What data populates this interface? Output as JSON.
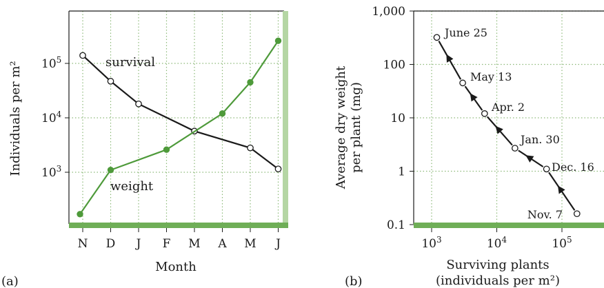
{
  "chart_data": [
    {
      "type": "line",
      "panel_label": "(a)",
      "xlabel": "Month",
      "ylabel": "Individuals per m²",
      "y_scale": "log",
      "ylim": [
        100,
        1000000
      ],
      "y_ticks": [
        {
          "value": 1000,
          "base": "10",
          "exp": "3"
        },
        {
          "value": 10000,
          "base": "10",
          "exp": "4"
        },
        {
          "value": 100000,
          "base": "10",
          "exp": "5"
        }
      ],
      "categories": [
        "N",
        "D",
        "J",
        "F",
        "M",
        "A",
        "M",
        "J"
      ],
      "grid": "dotted",
      "series": [
        {
          "name": "survival",
          "color": "#1a1a1a",
          "marker": "open-circle",
          "x": [
            0,
            1,
            2,
            3,
            4,
            5,
            6,
            7
          ],
          "values": [
            140000,
            47000,
            18000,
            null,
            5700,
            null,
            2800,
            1150
          ]
        },
        {
          "name": "weight",
          "color": "#4e9a3a",
          "marker": "filled-circle",
          "x": [
            0,
            1,
            2,
            3,
            4,
            5,
            6,
            7
          ],
          "values": [
            170,
            1100,
            null,
            2600,
            null,
            12000,
            45000,
            260000
          ]
        }
      ]
    },
    {
      "type": "line",
      "panel_label": "(b)",
      "xlabel": "Surviving plants",
      "xlabel2": "(individuals per m²)",
      "ylabel": "Average dry weight",
      "ylabel2": "per plant (mg)",
      "x_scale": "log",
      "y_scale": "log",
      "xlim": [
        300,
        1000000
      ],
      "ylim": [
        0.1,
        1000
      ],
      "x_ticks": [
        {
          "value": 1000,
          "base": "10",
          "exp": "3"
        },
        {
          "value": 10000,
          "base": "10",
          "exp": "4"
        },
        {
          "value": 100000,
          "base": "10",
          "exp": "5"
        }
      ],
      "y_ticks": [
        {
          "value": 0.1,
          "label": "0.1"
        },
        {
          "value": 1,
          "label": "1"
        },
        {
          "value": 10,
          "label": "10"
        },
        {
          "value": 100,
          "label": "100"
        },
        {
          "value": 1000,
          "label": "1,000"
        }
      ],
      "grid": "dotted",
      "points": [
        {
          "label": "Nov. 7",
          "x": 170000,
          "y": 0.16
        },
        {
          "label": "Dec. 16",
          "x": 58000,
          "y": 1.1
        },
        {
          "label": "Jan. 30",
          "x": 19000,
          "y": 2.7
        },
        {
          "label": "Apr. 2",
          "x": 6500,
          "y": 12
        },
        {
          "label": "May 13",
          "x": 3000,
          "y": 45
        },
        {
          "label": "June 25",
          "x": 1200,
          "y": 320
        }
      ]
    }
  ]
}
